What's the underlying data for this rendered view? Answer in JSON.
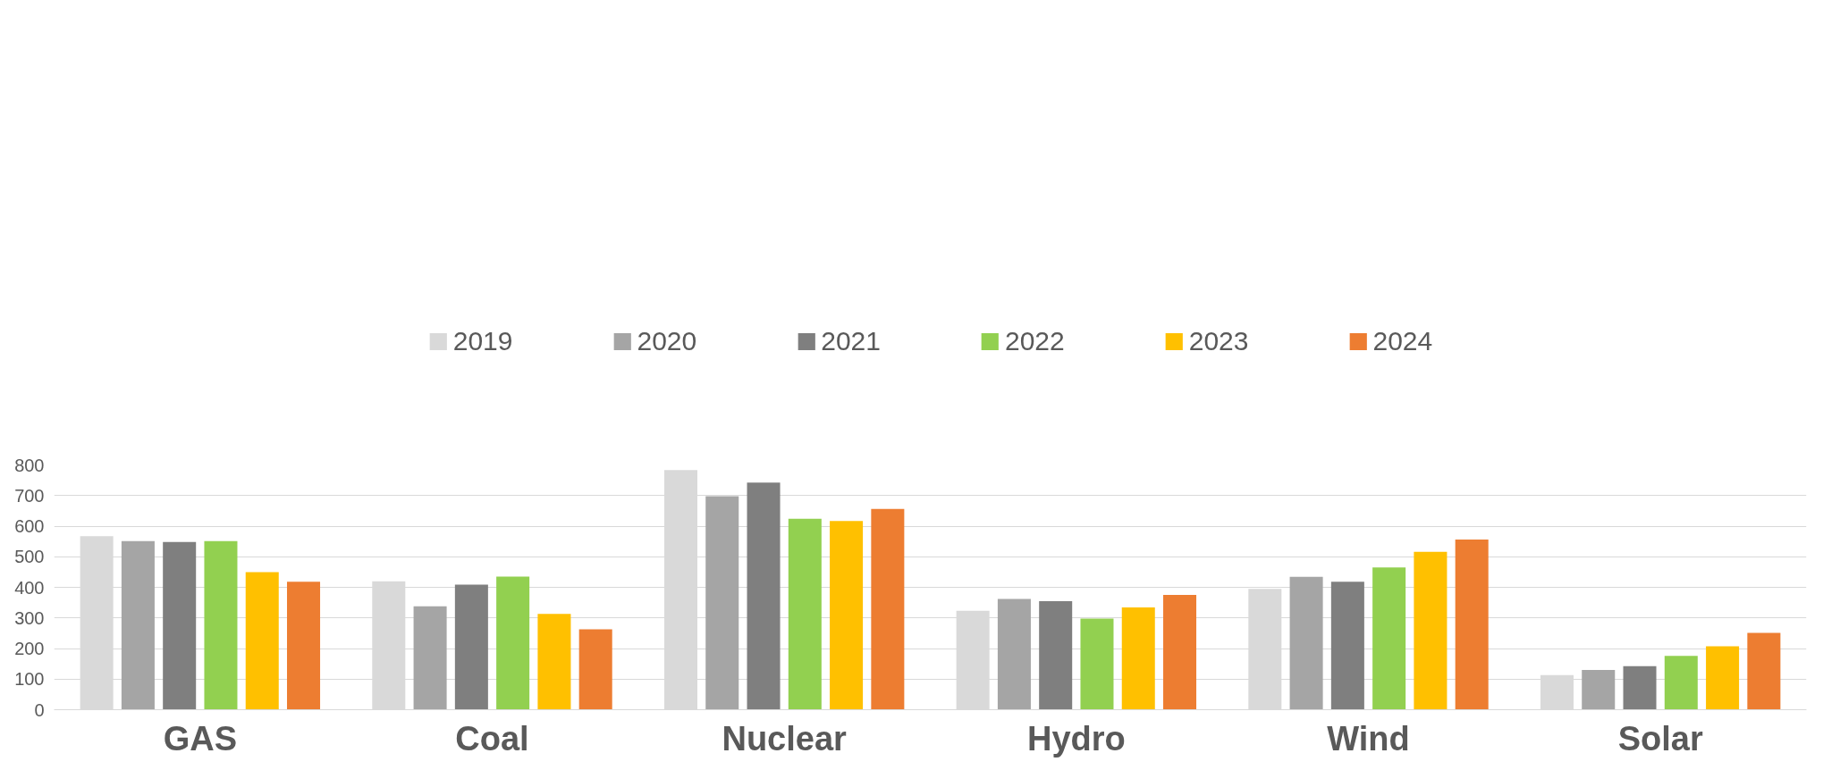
{
  "chart_data": {
    "type": "bar",
    "categories": [
      "GAS",
      "Coal",
      "Nuclear",
      "Hydro",
      "Wind",
      "Solar"
    ],
    "series": [
      {
        "name": "2019",
        "color": "#d9d9d9",
        "values": [
          567,
          420,
          783,
          323,
          395,
          113
        ]
      },
      {
        "name": "2020",
        "color": "#a5a5a5",
        "values": [
          551,
          338,
          698,
          362,
          434,
          130
        ]
      },
      {
        "name": "2021",
        "color": "#7f7f7f",
        "values": [
          548,
          409,
          742,
          355,
          418,
          142
        ]
      },
      {
        "name": "2022",
        "color": "#92d050",
        "values": [
          551,
          435,
          624,
          298,
          465,
          176
        ]
      },
      {
        "name": "2023",
        "color": "#ffc000",
        "values": [
          450,
          313,
          617,
          334,
          516,
          207
        ]
      },
      {
        "name": "2024",
        "color": "#ed7d31",
        "values": [
          418,
          263,
          656,
          375,
          556,
          251
        ]
      }
    ],
    "ylim": [
      0,
      800
    ],
    "yticks": [
      0,
      100,
      200,
      300,
      400,
      500,
      600,
      700,
      800
    ],
    "grid": "y",
    "legend": "top"
  }
}
